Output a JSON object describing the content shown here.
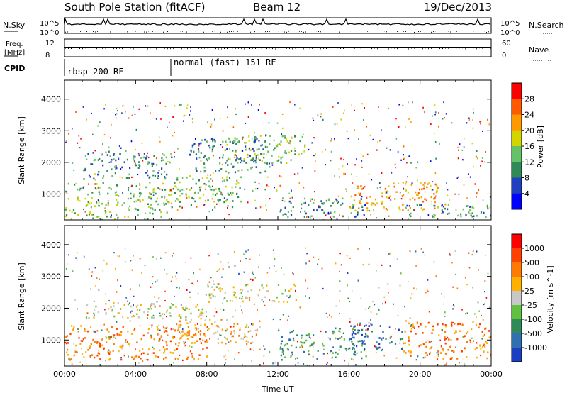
{
  "header": {
    "title": "South Pole Station (fitACF)",
    "beam": "Beam 12",
    "date": "19/Dec/2013"
  },
  "status_panels": {
    "nsky_label": "N.Sky",
    "nsearch_label": "N.Search",
    "freq_label": "Freq.",
    "freq_unit": "[MHz]",
    "nave_label": "Nave",
    "cpid_label": "CPID",
    "nsky_ticks": [
      "10^5",
      "10^0"
    ],
    "nsearch_ticks": [
      "10^5",
      "10^0"
    ],
    "freq_ticks": [
      "12",
      "8"
    ],
    "nave_ticks": [
      "60",
      "0"
    ],
    "cpid_segments": [
      {
        "label": "rbsp 200 RF",
        "start_hour": 0,
        "end_hour": 6
      },
      {
        "label": "normal (fast) 151 RF",
        "start_hour": 6,
        "end_hour": 24
      }
    ]
  },
  "chart_data": [
    {
      "type": "heatmap",
      "name": "power",
      "ylabel": "Slant Range [km]",
      "ylim": [
        180,
        4600
      ],
      "yticks": [
        "1000",
        "2000",
        "3000",
        "4000"
      ],
      "xlim": [
        0,
        24
      ],
      "colorbar": {
        "label": "Power [dB]",
        "ticks": [
          "4",
          "8",
          "12",
          "16",
          "20",
          "24",
          "28"
        ],
        "colors": [
          "#0000ff",
          "#2040c0",
          "#2e8b57",
          "#66c266",
          "#d4d400",
          "#ff9900",
          "#ff5a00",
          "#ff0000"
        ]
      },
      "regions": [
        {
          "start_hour": 0.0,
          "end_hour": 6.0,
          "range_min": 200,
          "range_max": 1400,
          "level": 3
        },
        {
          "start_hour": 1.0,
          "end_hour": 6.0,
          "range_min": 1500,
          "range_max": 2400,
          "level": 2
        },
        {
          "start_hour": 6.0,
          "end_hour": 10.0,
          "range_min": 600,
          "range_max": 1600,
          "level": 3
        },
        {
          "start_hour": 7.0,
          "end_hour": 11.5,
          "range_min": 1700,
          "range_max": 2800,
          "level": 2
        },
        {
          "start_hour": 9.0,
          "end_hour": 13.5,
          "range_min": 2000,
          "range_max": 2900,
          "level": 3
        },
        {
          "start_hour": 12.0,
          "end_hour": 17.0,
          "range_min": 300,
          "range_max": 900,
          "level": 2
        },
        {
          "start_hour": 16.0,
          "end_hour": 21.5,
          "range_min": 500,
          "range_max": 1400,
          "level": 5
        },
        {
          "start_hour": 19.0,
          "end_hour": 24.0,
          "range_min": 300,
          "range_max": 700,
          "level": 2
        }
      ]
    },
    {
      "type": "heatmap",
      "name": "velocity",
      "ylabel": "Slant Range [km]",
      "ylim": [
        180,
        4600
      ],
      "yticks": [
        "1000",
        "2000",
        "3000",
        "4000"
      ],
      "xlim": [
        0,
        24
      ],
      "xticks": [
        "00:00",
        "04:00",
        "08:00",
        "12:00",
        "16:00",
        "20:00",
        "00:00"
      ],
      "xlabel": "Time UT",
      "colorbar": {
        "label": "Velocity [m s^-1]",
        "ticks": [
          "1000",
          "500",
          "100",
          "25",
          "-25",
          "-100",
          "-500",
          "-1000"
        ],
        "colors": [
          "#1a3fc0",
          "#3070b0",
          "#2e8b57",
          "#60c040",
          "#c8c8c8",
          "#ffb000",
          "#ff7a00",
          "#ff4000",
          "#ff0000"
        ]
      },
      "regions": [
        {
          "start_hour": 0.0,
          "end_hour": 8.0,
          "range_min": 400,
          "range_max": 1500,
          "level": 6
        },
        {
          "start_hour": 1.0,
          "end_hour": 8.0,
          "range_min": 1700,
          "range_max": 2200,
          "level": 4
        },
        {
          "start_hour": 8.0,
          "end_hour": 13.0,
          "range_min": 2200,
          "range_max": 2800,
          "level": 4
        },
        {
          "start_hour": 6.0,
          "end_hour": 11.0,
          "range_min": 900,
          "range_max": 1700,
          "level": 5
        },
        {
          "start_hour": 12.0,
          "end_hour": 17.0,
          "range_min": 400,
          "range_max": 1400,
          "level": 2
        },
        {
          "start_hour": 16.0,
          "end_hour": 19.0,
          "range_min": 700,
          "range_max": 1500,
          "level": 1
        },
        {
          "start_hour": 19.0,
          "end_hour": 24.0,
          "range_min": 400,
          "range_max": 1600,
          "level": 6
        }
      ]
    }
  ]
}
